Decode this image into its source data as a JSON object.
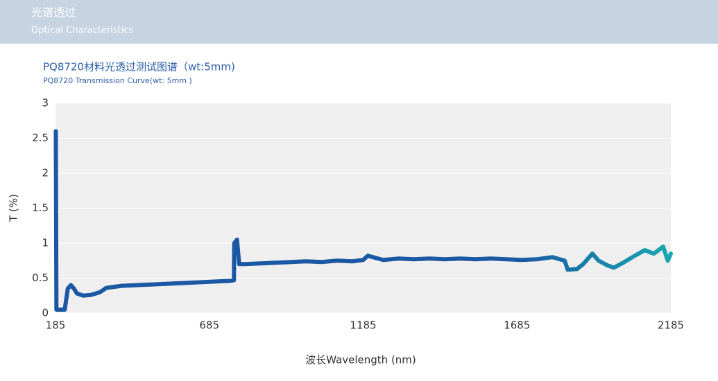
{
  "header": {
    "title": "光谱透过",
    "subtitle": "Optical Characteristics"
  },
  "chart_data": {
    "type": "line",
    "title": "PQ8720材料光透过测试图谱（wt:5mm)",
    "subtitle": "PQ8720 Transmission Curve(wt: 5mm )",
    "xlabel": "波长Wavelength (nm)",
    "ylabel": "T (%)",
    "xlim": [
      185,
      2185
    ],
    "xticks": [
      185,
      685,
      1185,
      1685,
      2185
    ],
    "ylim": [
      0,
      3
    ],
    "yticks": [
      0,
      0.5,
      1,
      1.5,
      2,
      2.5,
      3
    ],
    "grid": true,
    "x": [
      186,
      188,
      215,
      225,
      235,
      245,
      255,
      275,
      300,
      330,
      350,
      400,
      450,
      500,
      550,
      600,
      650,
      700,
      750,
      765,
      766,
      775,
      782,
      800,
      850,
      900,
      950,
      1000,
      1050,
      1100,
      1150,
      1185,
      1200,
      1250,
      1300,
      1350,
      1400,
      1450,
      1500,
      1550,
      1600,
      1650,
      1700,
      1750,
      1800,
      1840,
      1850,
      1880,
      1900,
      1930,
      1950,
      1980,
      2000,
      2030,
      2060,
      2100,
      2130,
      2160,
      2175,
      2185
    ],
    "series": [
      {
        "color": "#1b58a3",
        "gradient_end": "#18a7b2",
        "values": [
          2.6,
          0.05,
          0.05,
          0.35,
          0.4,
          0.35,
          0.28,
          0.25,
          0.26,
          0.3,
          0.36,
          0.39,
          0.4,
          0.41,
          0.42,
          0.43,
          0.44,
          0.45,
          0.46,
          0.47,
          1.0,
          1.05,
          0.7,
          0.7,
          0.71,
          0.72,
          0.73,
          0.74,
          0.73,
          0.75,
          0.74,
          0.76,
          0.82,
          0.76,
          0.78,
          0.77,
          0.78,
          0.77,
          0.78,
          0.77,
          0.78,
          0.77,
          0.76,
          0.77,
          0.8,
          0.75,
          0.62,
          0.63,
          0.7,
          0.85,
          0.75,
          0.68,
          0.65,
          0.72,
          0.8,
          0.9,
          0.85,
          0.95,
          0.75,
          0.85
        ]
      }
    ]
  }
}
